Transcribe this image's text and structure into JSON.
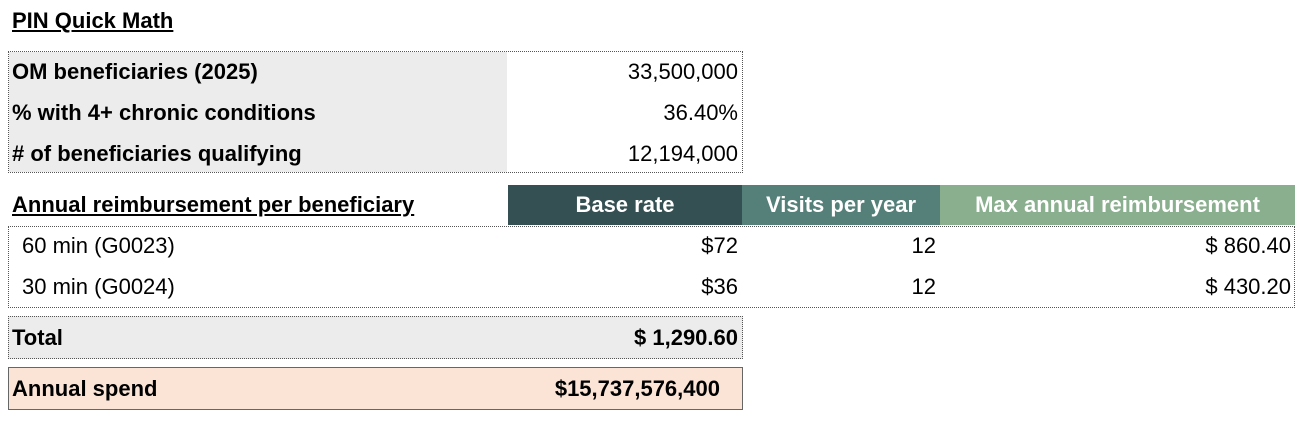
{
  "title": "PIN Quick Math",
  "summary": {
    "rows": [
      {
        "label": "OM beneficiaries (2025)",
        "value": "33,500,000"
      },
      {
        "label": "% with 4+ chronic conditions",
        "value": "36.40%"
      },
      {
        "label": "# of beneficiaries qualifying",
        "value": "12,194,000"
      }
    ]
  },
  "reimbursement": {
    "label": "Annual reimbursement per beneficiary",
    "headers": [
      "Base rate",
      "Visits per year",
      "Max annual reimbursement"
    ],
    "rows": [
      {
        "code": "60 min (G0023)",
        "base_rate": "$72",
        "visits": "12",
        "max": "$ 860.40"
      },
      {
        "code": "30 min (G0024)",
        "base_rate": "$36",
        "visits": "12",
        "max": "$ 430.20"
      }
    ]
  },
  "total": {
    "label": "Total",
    "value": "$ 1,290.60"
  },
  "annual_spend": {
    "label": "Annual spend",
    "value": "$15,737,576,400"
  },
  "colors": {
    "header_dark": "#345052",
    "header_mid": "#55807a",
    "header_light": "#8aaf8e",
    "gray_fill": "#ececec",
    "peach_fill": "#fbe3d6"
  }
}
